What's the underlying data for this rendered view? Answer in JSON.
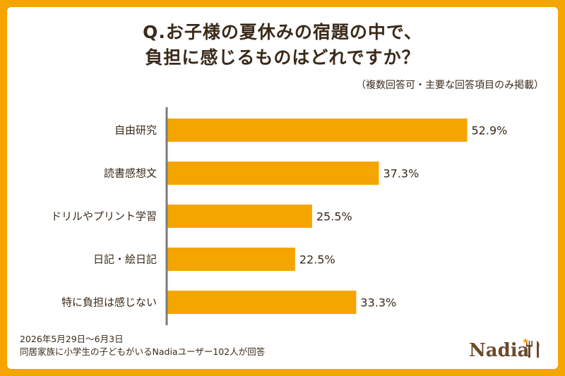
{
  "title": {
    "line1": "Q.お子様の夏休みの宿題の中で、",
    "line2": "負担に感じるものはどれですか？"
  },
  "note": "（複数回答可・主要な回答項目のみ掲載）",
  "footer": {
    "date": "2026年5月29日～6月3日",
    "sample": "同居家族に小学生の子どもがいるNadiaユーザー102人が回答"
  },
  "logo": {
    "text": "Nadia"
  },
  "colors": {
    "background_border": "#f5a500",
    "bar": "#f5a500",
    "axis": "#7a7a7a",
    "text": "#3a2a1a"
  },
  "chart_data": {
    "type": "bar",
    "orientation": "horizontal",
    "categories": [
      "自由研究",
      "読書感想文",
      "ドリルやプリント学習",
      "日記・絵日記",
      "特に負担は感じない"
    ],
    "values": [
      52.9,
      37.3,
      25.5,
      22.5,
      33.3
    ],
    "value_labels": [
      "52.9%",
      "37.3%",
      "25.5%",
      "22.5%",
      "33.3%"
    ],
    "unit": "%",
    "xlim": [
      0,
      100
    ],
    "grid": false,
    "legend": "none"
  }
}
